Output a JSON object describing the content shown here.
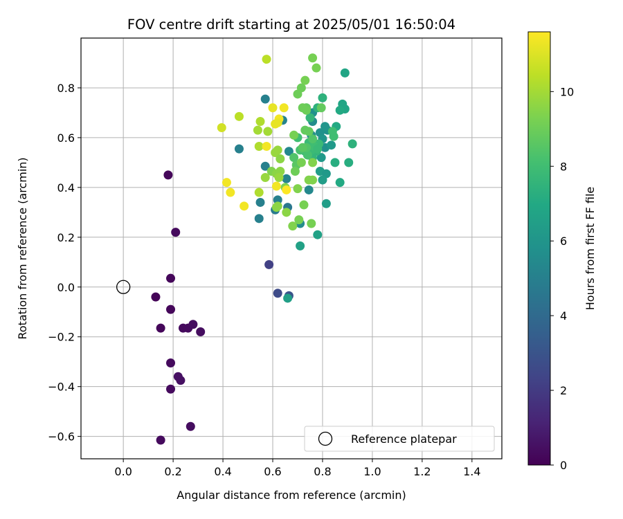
{
  "chart_data": {
    "type": "scatter",
    "title": "FOV centre drift starting at 2025/05/01 16:50:04",
    "xlabel": "Angular distance from reference (arcmin)",
    "ylabel": "Rotation from reference (arcmin)",
    "xlim": [
      -0.17,
      1.52
    ],
    "ylim": [
      -0.69,
      1.0
    ],
    "xticks": [
      0.0,
      0.2,
      0.4,
      0.6,
      0.8,
      1.0,
      1.2,
      1.4
    ],
    "xtick_labels": [
      "0.0",
      "0.2",
      "0.4",
      "0.6",
      "0.8",
      "1.0",
      "1.2",
      "1.4"
    ],
    "yticks": [
      -0.6,
      -0.4,
      -0.2,
      0.0,
      0.2,
      0.4,
      0.6,
      0.8
    ],
    "ytick_labels": [
      "−0.6",
      "−0.4",
      "−0.2",
      "0.0",
      "0.2",
      "0.4",
      "0.6",
      "0.8"
    ],
    "grid": true,
    "legend_position": "lower-right",
    "legend": {
      "label": "Reference platepar"
    },
    "reference_point": {
      "x": 0.0,
      "y": 0.0
    },
    "colorbar": {
      "label": "Hours from first FF file",
      "min": 0,
      "max": 11.6,
      "ticks": [
        0,
        2,
        4,
        6,
        8,
        10
      ],
      "tick_labels": [
        "0",
        "2",
        "4",
        "6",
        "8",
        "10"
      ],
      "colormap": "viridis"
    },
    "points": [
      [
        0.18,
        0.45,
        0.2
      ],
      [
        0.21,
        0.22,
        0.3
      ],
      [
        0.19,
        0.035,
        0.2
      ],
      [
        0.13,
        -0.04,
        0.1
      ],
      [
        0.19,
        -0.09,
        0.2
      ],
      [
        0.15,
        -0.165,
        0.2
      ],
      [
        0.24,
        -0.165,
        0.3
      ],
      [
        0.26,
        -0.165,
        0.3
      ],
      [
        0.28,
        -0.15,
        0.4
      ],
      [
        0.31,
        -0.18,
        0.4
      ],
      [
        0.19,
        -0.305,
        0.3
      ],
      [
        0.22,
        -0.36,
        0.5
      ],
      [
        0.23,
        -0.375,
        0.5
      ],
      [
        0.19,
        -0.41,
        0.3
      ],
      [
        0.27,
        -0.56,
        0.4
      ],
      [
        0.15,
        -0.615,
        0.3
      ],
      [
        0.585,
        0.09,
        2.2
      ],
      [
        0.62,
        -0.025,
        2.6
      ],
      [
        0.665,
        -0.035,
        3.0
      ],
      [
        0.66,
        -0.045,
        6.5
      ],
      [
        0.57,
        0.755,
        5.0
      ],
      [
        0.64,
        0.67,
        5.2
      ],
      [
        0.465,
        0.555,
        5.0
      ],
      [
        0.57,
        0.485,
        5.0
      ],
      [
        0.55,
        0.34,
        5.0
      ],
      [
        0.545,
        0.275,
        5.0
      ],
      [
        0.62,
        0.35,
        5.0
      ],
      [
        0.61,
        0.31,
        4.8
      ],
      [
        0.66,
        0.32,
        4.6
      ],
      [
        0.655,
        0.435,
        5.2
      ],
      [
        0.665,
        0.545,
        5.4
      ],
      [
        0.71,
        0.255,
        5.6
      ],
      [
        0.745,
        0.39,
        5.4
      ],
      [
        0.755,
        0.61,
        5.6
      ],
      [
        0.76,
        0.665,
        5.6
      ],
      [
        0.76,
        0.7,
        5.8
      ],
      [
        0.79,
        0.62,
        5.8
      ],
      [
        0.82,
        0.63,
        5.8
      ],
      [
        0.81,
        0.645,
        6.0
      ],
      [
        0.81,
        0.56,
        5.8
      ],
      [
        0.8,
        0.595,
        6.0
      ],
      [
        0.795,
        0.52,
        6.2
      ],
      [
        0.835,
        0.57,
        6.2
      ],
      [
        0.79,
        0.465,
        6.4
      ],
      [
        0.815,
        0.455,
        6.2
      ],
      [
        0.8,
        0.43,
        6.4
      ],
      [
        0.815,
        0.335,
        6.4
      ],
      [
        0.78,
        0.21,
        6.6
      ],
      [
        0.71,
        0.165,
        6.6
      ],
      [
        0.89,
        0.86,
        6.8
      ],
      [
        0.88,
        0.735,
        6.8
      ],
      [
        0.89,
        0.715,
        6.8
      ],
      [
        0.87,
        0.71,
        7.0
      ],
      [
        0.855,
        0.645,
        7.0
      ],
      [
        0.87,
        0.42,
        7.0
      ],
      [
        0.85,
        0.5,
        7.2
      ],
      [
        0.905,
        0.5,
        7.2
      ],
      [
        0.92,
        0.575,
        7.4
      ],
      [
        0.8,
        0.76,
        7.4
      ],
      [
        0.78,
        0.72,
        7.4
      ],
      [
        0.75,
        0.68,
        7.6
      ],
      [
        0.73,
        0.545,
        7.6
      ],
      [
        0.775,
        0.545,
        7.6
      ],
      [
        0.785,
        0.575,
        7.8
      ],
      [
        0.76,
        0.52,
        7.6
      ],
      [
        0.745,
        0.58,
        7.8
      ],
      [
        0.755,
        0.55,
        7.8
      ],
      [
        0.765,
        0.565,
        8.0
      ],
      [
        0.78,
        0.555,
        7.8
      ],
      [
        0.845,
        0.605,
        8.0
      ],
      [
        0.84,
        0.625,
        8.0
      ],
      [
        0.7,
        0.6,
        8.0
      ],
      [
        0.71,
        0.55,
        8.2
      ],
      [
        0.74,
        0.53,
        8.2
      ],
      [
        0.735,
        0.56,
        8.4
      ],
      [
        0.76,
        0.595,
        8.4
      ],
      [
        0.685,
        0.52,
        8.4
      ],
      [
        0.695,
        0.49,
        8.6
      ],
      [
        0.72,
        0.56,
        8.6
      ],
      [
        0.745,
        0.625,
        8.8
      ],
      [
        0.73,
        0.63,
        8.8
      ],
      [
        0.735,
        0.72,
        8.8
      ],
      [
        0.735,
        0.71,
        9.0
      ],
      [
        0.72,
        0.72,
        9.0
      ],
      [
        0.795,
        0.72,
        8.8
      ],
      [
        0.7,
        0.775,
        9.0
      ],
      [
        0.715,
        0.8,
        9.0
      ],
      [
        0.73,
        0.83,
        9.2
      ],
      [
        0.76,
        0.92,
        9.2
      ],
      [
        0.775,
        0.88,
        9.2
      ],
      [
        0.685,
        0.61,
        9.2
      ],
      [
        0.69,
        0.465,
        9.0
      ],
      [
        0.715,
        0.5,
        9.2
      ],
      [
        0.745,
        0.43,
        9.4
      ],
      [
        0.76,
        0.43,
        9.4
      ],
      [
        0.76,
        0.5,
        9.4
      ],
      [
        0.65,
        0.4,
        9.4
      ],
      [
        0.68,
        0.245,
        9.4
      ],
      [
        0.705,
        0.27,
        9.2
      ],
      [
        0.725,
        0.33,
        9.2
      ],
      [
        0.755,
        0.255,
        9.2
      ],
      [
        0.7,
        0.395,
        9.4
      ],
      [
        0.655,
        0.3,
        9.6
      ],
      [
        0.615,
        0.32,
        9.6
      ],
      [
        0.62,
        0.325,
        9.6
      ],
      [
        0.595,
        0.465,
        9.4
      ],
      [
        0.615,
        0.455,
        9.6
      ],
      [
        0.63,
        0.465,
        9.6
      ],
      [
        0.625,
        0.44,
        9.8
      ],
      [
        0.57,
        0.44,
        9.8
      ],
      [
        0.61,
        0.54,
        9.8
      ],
      [
        0.62,
        0.55,
        9.8
      ],
      [
        0.63,
        0.515,
        9.6
      ],
      [
        0.58,
        0.625,
        10.0
      ],
      [
        0.54,
        0.63,
        10.0
      ],
      [
        0.545,
        0.565,
        10.2
      ],
      [
        0.55,
        0.665,
        10.2
      ],
      [
        0.545,
        0.38,
        10.2
      ],
      [
        0.465,
        0.685,
        10.4
      ],
      [
        0.575,
        0.915,
        10.4
      ],
      [
        0.395,
        0.64,
        10.8
      ],
      [
        0.6,
        0.72,
        11.2
      ],
      [
        0.61,
        0.655,
        11.2
      ],
      [
        0.625,
        0.675,
        11.4
      ],
      [
        0.645,
        0.72,
        11.4
      ],
      [
        0.575,
        0.565,
        11.4
      ],
      [
        0.415,
        0.42,
        11.4
      ],
      [
        0.43,
        0.38,
        11.4
      ],
      [
        0.485,
        0.325,
        11.4
      ],
      [
        0.615,
        0.405,
        11.4
      ],
      [
        0.655,
        0.39,
        11.6
      ],
      [
        0.62,
        0.66,
        11.2
      ]
    ]
  }
}
